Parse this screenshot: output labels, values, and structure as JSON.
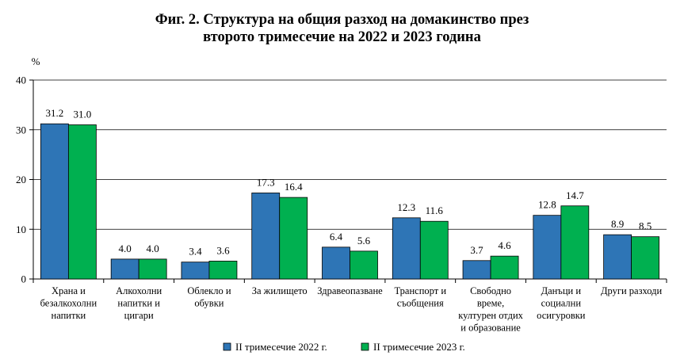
{
  "chart_data": {
    "type": "bar",
    "title_line1": "Фиг. 2. Структура на общия разход на домакинство през",
    "title_line2": "второто тримесечие на 2022 и 2023 година",
    "ylabel": "%",
    "ylim": [
      0,
      40
    ],
    "yticks": [
      "0",
      "10",
      "20",
      "30",
      "40"
    ],
    "grid": true,
    "legend_position": "bottom",
    "categories": [
      [
        "Храна и",
        "безалкохолни",
        "напитки"
      ],
      [
        "Алкохолни",
        "напитки  и",
        "цигари"
      ],
      [
        "Облекло и",
        "обувки"
      ],
      [
        "За жилището"
      ],
      [
        "Здравеопазване"
      ],
      [
        "Транспорт  и",
        "съобщения"
      ],
      [
        "Свободно",
        "време,",
        "културен отдих",
        "и образование"
      ],
      [
        "Данъци и",
        "социални",
        "осигуровки"
      ],
      [
        "Други разходи"
      ]
    ],
    "series": [
      {
        "name": "II тримесечие 2022  г.",
        "color": "#2e75b6",
        "values": [
          31.2,
          4.0,
          3.4,
          17.3,
          6.4,
          12.3,
          3.7,
          12.8,
          8.9
        ],
        "labels": [
          "31.2",
          "4.0",
          "3.4",
          "17.3",
          "6.4",
          "12.3",
          "3.7",
          "12.8",
          "8.9"
        ]
      },
      {
        "name": "II тримесечие 2023  г.",
        "color": "#00b050",
        "values": [
          31.0,
          4.0,
          3.6,
          16.4,
          5.6,
          11.6,
          4.6,
          14.7,
          8.5
        ],
        "labels": [
          "31.0",
          "4.0",
          "3.6",
          "16.4",
          "5.6",
          "11.6",
          "4.6",
          "14.7",
          "8.5"
        ]
      }
    ]
  }
}
